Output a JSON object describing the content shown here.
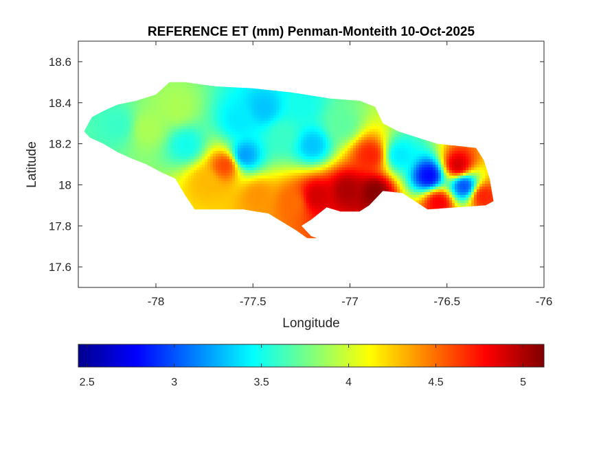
{
  "chart_data": {
    "type": "heatmap",
    "title": "REFERENCE ET (mm) Penman-Monteith 10-Oct-2025",
    "xlabel": "Longitude",
    "ylabel": "Latitude",
    "xlim": [
      -78.4,
      -76
    ],
    "ylim": [
      17.5,
      18.7
    ],
    "xticks": [
      -78,
      -77.5,
      -77,
      -76.5,
      -76
    ],
    "xtick_labels": [
      "-78",
      "-77.5",
      "-77",
      "-76.5",
      "-76"
    ],
    "yticks": [
      17.6,
      17.8,
      18,
      18.2,
      18.4,
      18.6
    ],
    "ytick_labels": [
      "17.6",
      "17.8",
      "18",
      "18.2",
      "18.4",
      "18.6"
    ],
    "grid": false,
    "colormap": "jet",
    "colorbar": {
      "orientation": "horizontal",
      "location": "bottom",
      "range": [
        2.45,
        5.12
      ],
      "ticks": [
        2.5,
        3,
        3.5,
        4,
        4.5,
        5
      ],
      "tick_labels": [
        "2.5",
        "3",
        "3.5",
        "4",
        "4.5",
        "5"
      ]
    },
    "region_outline": [
      [
        -78.37,
        18.26
      ],
      [
        -78.33,
        18.33
      ],
      [
        -78.27,
        18.36
      ],
      [
        -78.2,
        18.39
      ],
      [
        -78.1,
        18.41
      ],
      [
        -78.0,
        18.44
      ],
      [
        -77.93,
        18.5
      ],
      [
        -77.85,
        18.5
      ],
      [
        -77.7,
        18.48
      ],
      [
        -77.5,
        18.47
      ],
      [
        -77.3,
        18.45
      ],
      [
        -77.1,
        18.42
      ],
      [
        -76.95,
        18.41
      ],
      [
        -76.87,
        18.38
      ],
      [
        -76.83,
        18.3
      ],
      [
        -76.75,
        18.26
      ],
      [
        -76.65,
        18.23
      ],
      [
        -76.55,
        18.2
      ],
      [
        -76.45,
        18.19
      ],
      [
        -76.35,
        18.18
      ],
      [
        -76.31,
        18.12
      ],
      [
        -76.28,
        18.03
      ],
      [
        -76.26,
        17.92
      ],
      [
        -76.3,
        17.9
      ],
      [
        -76.45,
        17.89
      ],
      [
        -76.6,
        17.88
      ],
      [
        -76.73,
        17.96
      ],
      [
        -76.83,
        17.97
      ],
      [
        -76.9,
        17.9
      ],
      [
        -76.95,
        17.87
      ],
      [
        -77.05,
        17.87
      ],
      [
        -77.12,
        17.89
      ],
      [
        -77.2,
        17.83
      ],
      [
        -77.25,
        17.8
      ],
      [
        -77.2,
        17.75
      ],
      [
        -77.17,
        17.74
      ],
      [
        -77.22,
        17.74
      ],
      [
        -77.28,
        17.78
      ],
      [
        -77.35,
        17.82
      ],
      [
        -77.42,
        17.86
      ],
      [
        -77.55,
        17.88
      ],
      [
        -77.72,
        17.88
      ],
      [
        -77.8,
        17.88
      ],
      [
        -77.85,
        17.95
      ],
      [
        -77.9,
        18.03
      ],
      [
        -77.97,
        18.06
      ],
      [
        -78.05,
        18.1
      ],
      [
        -78.13,
        18.13
      ],
      [
        -78.2,
        18.16
      ],
      [
        -78.27,
        18.2
      ],
      [
        -78.34,
        18.23
      ]
    ],
    "zones": [
      {
        "lon": -78.2,
        "lat": 18.3,
        "value": 3.6
      },
      {
        "lon": -78.05,
        "lat": 18.28,
        "value": 3.9
      },
      {
        "lon": -77.9,
        "lat": 18.38,
        "value": 3.9
      },
      {
        "lon": -77.85,
        "lat": 18.2,
        "value": 3.5
      },
      {
        "lon": -77.75,
        "lat": 18.02,
        "value": 4.3
      },
      {
        "lon": -77.65,
        "lat": 18.1,
        "value": 4.6
      },
      {
        "lon": -77.58,
        "lat": 18.32,
        "value": 3.4
      },
      {
        "lon": -77.55,
        "lat": 18.15,
        "value": 3.2
      },
      {
        "lon": -77.48,
        "lat": 17.95,
        "value": 4.4
      },
      {
        "lon": -77.45,
        "lat": 18.38,
        "value": 3.3
      },
      {
        "lon": -77.35,
        "lat": 18.25,
        "value": 3.6
      },
      {
        "lon": -77.3,
        "lat": 17.92,
        "value": 4.5
      },
      {
        "lon": -77.25,
        "lat": 18.4,
        "value": 3.5
      },
      {
        "lon": -77.2,
        "lat": 18.2,
        "value": 3.3
      },
      {
        "lon": -77.18,
        "lat": 17.95,
        "value": 4.9
      },
      {
        "lon": -77.05,
        "lat": 18.3,
        "value": 3.7
      },
      {
        "lon": -77.02,
        "lat": 17.98,
        "value": 5.0
      },
      {
        "lon": -76.9,
        "lat": 18.15,
        "value": 4.7
      },
      {
        "lon": -76.88,
        "lat": 17.97,
        "value": 5.1
      },
      {
        "lon": -76.75,
        "lat": 18.15,
        "value": 3.4
      },
      {
        "lon": -76.6,
        "lat": 18.05,
        "value": 2.8
      },
      {
        "lon": -76.55,
        "lat": 17.92,
        "value": 4.8
      },
      {
        "lon": -76.45,
        "lat": 18.1,
        "value": 4.9
      },
      {
        "lon": -76.42,
        "lat": 18.0,
        "value": 3.0
      },
      {
        "lon": -76.32,
        "lat": 17.95,
        "value": 4.7
      }
    ]
  }
}
